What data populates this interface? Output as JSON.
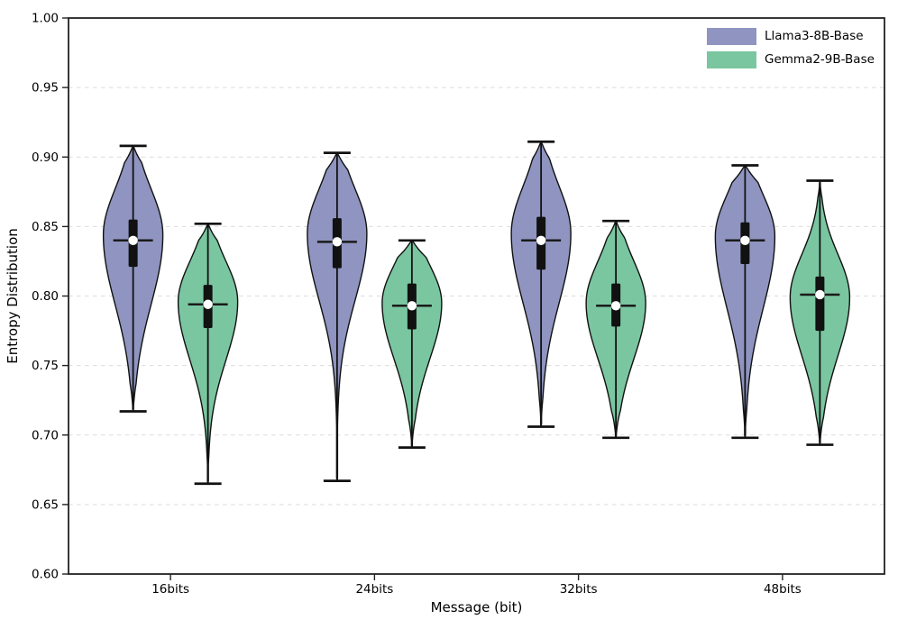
{
  "figure": {
    "background": "#ffffff"
  },
  "legend": {
    "position": "upper-right",
    "items": [
      {
        "label": "Llama3-8B-Base",
        "color": "#8f95c0"
      },
      {
        "label": "Gemma2-9B-Base",
        "color": "#7ac6a0"
      }
    ]
  },
  "style": {
    "violin_outline": "#111111",
    "whisker_color": "#111111",
    "box_color": "#111111",
    "median_line_color": "#1a1a1a",
    "median_dot_color": "#ffffff",
    "gridline_color": "#dcdcdc",
    "spine_color": "#222222",
    "text_color": "#000000"
  },
  "chart_data": {
    "type": "violin",
    "title": "",
    "xlabel": "Message (bit)",
    "ylabel": "Entropy Distribution",
    "ylim": [
      0.6,
      1.0
    ],
    "yticks": [
      0.6,
      0.65,
      0.7,
      0.75,
      0.8,
      0.85,
      0.9,
      0.95,
      1.0
    ],
    "ytick_labels": [
      "0.60",
      "0.65",
      "0.70",
      "0.75",
      "0.80",
      "0.85",
      "0.90",
      "0.95",
      "1.00"
    ],
    "categories": [
      "16bits",
      "24bits",
      "32bits",
      "48bits"
    ],
    "grid": "horizontal-dashed",
    "legend_position": "upper right",
    "inner": "box-with-median-dot-and-whisker-caps",
    "series": [
      {
        "name": "Llama3-8B-Base",
        "color": "#8f95c0",
        "violins": [
          {
            "category": "16bits",
            "min": 0.717,
            "q1": 0.821,
            "median": 0.84,
            "q3": 0.855,
            "max": 0.908,
            "kde_peak": 0.844,
            "spread_upper": 0.033,
            "spread_lower": 0.05
          },
          {
            "category": "24bits",
            "min": 0.667,
            "q1": 0.82,
            "median": 0.839,
            "q3": 0.856,
            "max": 0.903,
            "kde_peak": 0.845,
            "spread_upper": 0.032,
            "spread_lower": 0.048
          },
          {
            "category": "32bits",
            "min": 0.706,
            "q1": 0.819,
            "median": 0.84,
            "q3": 0.857,
            "max": 0.911,
            "kde_peak": 0.845,
            "spread_upper": 0.034,
            "spread_lower": 0.05
          },
          {
            "category": "48bits",
            "min": 0.698,
            "q1": 0.823,
            "median": 0.84,
            "q3": 0.853,
            "max": 0.894,
            "kde_peak": 0.843,
            "spread_upper": 0.03,
            "spread_lower": 0.052
          }
        ]
      },
      {
        "name": "Gemma2-9B-Base",
        "color": "#7ac6a0",
        "violins": [
          {
            "category": "16bits",
            "min": 0.665,
            "q1": 0.777,
            "median": 0.794,
            "q3": 0.808,
            "max": 0.852,
            "kde_peak": 0.796,
            "spread_upper": 0.029,
            "spread_lower": 0.042
          },
          {
            "category": "24bits",
            "min": 0.691,
            "q1": 0.776,
            "median": 0.793,
            "q3": 0.809,
            "max": 0.84,
            "kde_peak": 0.795,
            "spread_upper": 0.027,
            "spread_lower": 0.04
          },
          {
            "category": "32bits",
            "min": 0.698,
            "q1": 0.778,
            "median": 0.793,
            "q3": 0.809,
            "max": 0.854,
            "kde_peak": 0.795,
            "spread_upper": 0.03,
            "spread_lower": 0.04
          },
          {
            "category": "48bits",
            "min": 0.693,
            "q1": 0.775,
            "median": 0.801,
            "q3": 0.814,
            "max": 0.883,
            "kde_peak": 0.799,
            "spread_upper": 0.031,
            "spread_lower": 0.042
          }
        ]
      }
    ]
  }
}
